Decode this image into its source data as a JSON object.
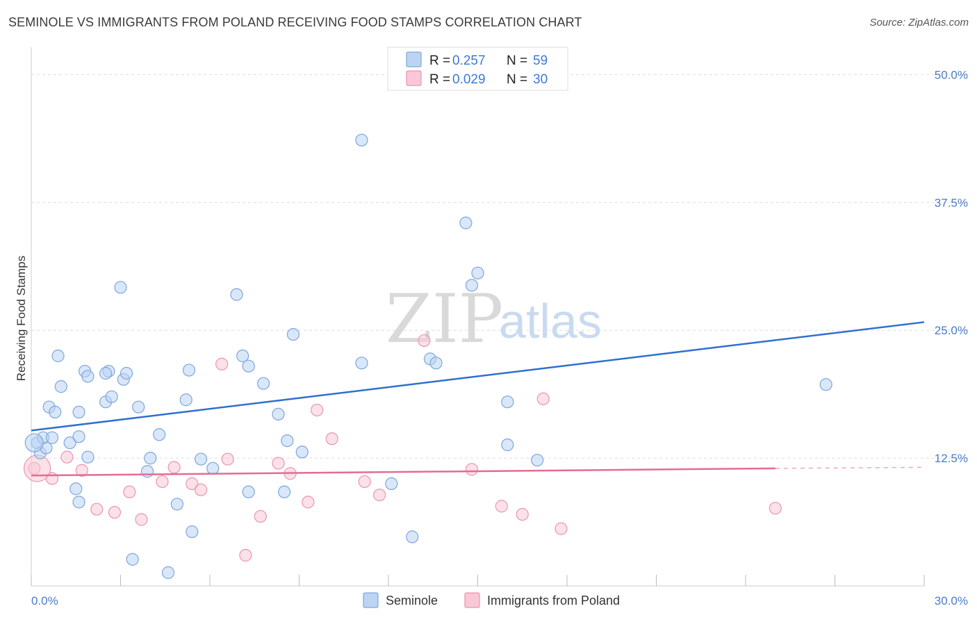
{
  "title": "SEMINOLE VS IMMIGRANTS FROM POLAND RECEIVING FOOD STAMPS CORRELATION CHART",
  "source": "Source: ZipAtlas.com",
  "watermark": {
    "zip": "ZIP",
    "atlas": "atlas"
  },
  "colors": {
    "seminole_fill": "#bcd4f2",
    "seminole_stroke": "#7aa6df",
    "seminole_line": "#2f6fd0",
    "poland_fill": "#f8c8d6",
    "poland_stroke": "#ec94ae",
    "poland_line": "#e46b93",
    "grid": "#dddddd",
    "axis_text": "#4a7cc7"
  },
  "legend": {
    "rows": [
      {
        "r_label": "R =",
        "r_value": "0.257",
        "n_label": "N =",
        "n_value": "59"
      },
      {
        "r_label": "R =",
        "r_value": "0.029",
        "n_label": "N =",
        "n_value": "30"
      }
    ]
  },
  "chart_data": {
    "type": "scatter",
    "title": "SEMINOLE VS IMMIGRANTS FROM POLAND RECEIVING FOOD STAMPS CORRELATION CHART",
    "xlabel": "",
    "ylabel": "Receiving Food Stamps",
    "xlim": [
      0,
      30
    ],
    "ylim": [
      0,
      52
    ],
    "x_tick_labels": [
      "0.0%",
      "30.0%"
    ],
    "y_ticks": [
      12.5,
      25.0,
      37.5,
      50.0
    ],
    "y_tick_labels": [
      "12.5%",
      "25.0%",
      "37.5%",
      "50.0%"
    ],
    "grid": true,
    "legend_position": "top-center",
    "series": [
      {
        "name": "Seminole",
        "r": 0.257,
        "n": 59,
        "trend": {
          "x": [
            0,
            30
          ],
          "y": [
            15.2,
            25.8
          ]
        },
        "points": [
          [
            0.2,
            14.0
          ],
          [
            0.3,
            13.0
          ],
          [
            0.5,
            13.5
          ],
          [
            0.4,
            14.5
          ],
          [
            0.7,
            14.5
          ],
          [
            0.6,
            17.5
          ],
          [
            0.8,
            17.0
          ],
          [
            1.3,
            14.0
          ],
          [
            1.0,
            19.5
          ],
          [
            0.9,
            22.5
          ],
          [
            1.6,
            17.0
          ],
          [
            1.8,
            21.0
          ],
          [
            1.9,
            20.5
          ],
          [
            2.6,
            21.0
          ],
          [
            2.5,
            20.8
          ],
          [
            2.5,
            18.0
          ],
          [
            2.7,
            18.5
          ],
          [
            3.1,
            20.2
          ],
          [
            3.0,
            29.2
          ],
          [
            3.2,
            20.8
          ],
          [
            3.6,
            17.5
          ],
          [
            1.6,
            14.6
          ],
          [
            4.3,
            14.8
          ],
          [
            4.0,
            12.5
          ],
          [
            3.9,
            11.2
          ],
          [
            1.9,
            12.6
          ],
          [
            5.2,
            18.2
          ],
          [
            5.3,
            21.1
          ],
          [
            5.7,
            12.4
          ],
          [
            6.1,
            11.5
          ],
          [
            6.9,
            28.5
          ],
          [
            7.1,
            22.5
          ],
          [
            7.3,
            21.5
          ],
          [
            7.8,
            19.8
          ],
          [
            8.3,
            16.8
          ],
          [
            8.6,
            14.2
          ],
          [
            8.5,
            9.2
          ],
          [
            9.1,
            13.1
          ],
          [
            8.8,
            24.6
          ],
          [
            11.1,
            21.8
          ],
          [
            11.1,
            43.6
          ],
          [
            12.1,
            10.0
          ],
          [
            12.8,
            4.8
          ],
          [
            13.4,
            22.2
          ],
          [
            13.6,
            21.8
          ],
          [
            14.6,
            35.5
          ],
          [
            14.8,
            29.4
          ],
          [
            15.0,
            30.6
          ],
          [
            16.0,
            13.8
          ],
          [
            16.0,
            18.0
          ],
          [
            17.0,
            12.3
          ],
          [
            26.7,
            19.7
          ],
          [
            1.6,
            8.2
          ],
          [
            1.5,
            9.5
          ],
          [
            4.9,
            8.0
          ],
          [
            5.4,
            5.3
          ],
          [
            7.3,
            9.2
          ],
          [
            3.4,
            2.6
          ],
          [
            4.6,
            1.3
          ]
        ]
      },
      {
        "name": "Immigrants from Poland",
        "r": 0.029,
        "n": 30,
        "trend": {
          "x": [
            0,
            25
          ],
          "y": [
            10.8,
            11.5
          ],
          "dashed_to_x": 30,
          "dashed_to_y": 11.6
        },
        "points": [
          [
            0.1,
            11.5
          ],
          [
            0.7,
            10.5
          ],
          [
            1.2,
            12.6
          ],
          [
            1.7,
            11.3
          ],
          [
            2.2,
            7.5
          ],
          [
            2.8,
            7.2
          ],
          [
            3.3,
            9.2
          ],
          [
            3.7,
            6.5
          ],
          [
            4.4,
            10.2
          ],
          [
            4.8,
            11.6
          ],
          [
            5.4,
            10.0
          ],
          [
            5.7,
            9.4
          ],
          [
            6.6,
            12.4
          ],
          [
            6.4,
            21.7
          ],
          [
            7.2,
            3.0
          ],
          [
            7.7,
            6.8
          ],
          [
            8.3,
            12.0
          ],
          [
            8.7,
            11.0
          ],
          [
            9.3,
            8.2
          ],
          [
            9.6,
            17.2
          ],
          [
            10.1,
            14.4
          ],
          [
            11.2,
            10.2
          ],
          [
            11.7,
            8.9
          ],
          [
            13.2,
            24.0
          ],
          [
            14.8,
            11.4
          ],
          [
            15.8,
            7.8
          ],
          [
            16.5,
            7.0
          ],
          [
            17.2,
            18.3
          ],
          [
            17.8,
            5.6
          ],
          [
            25.0,
            7.6
          ]
        ]
      }
    ]
  }
}
